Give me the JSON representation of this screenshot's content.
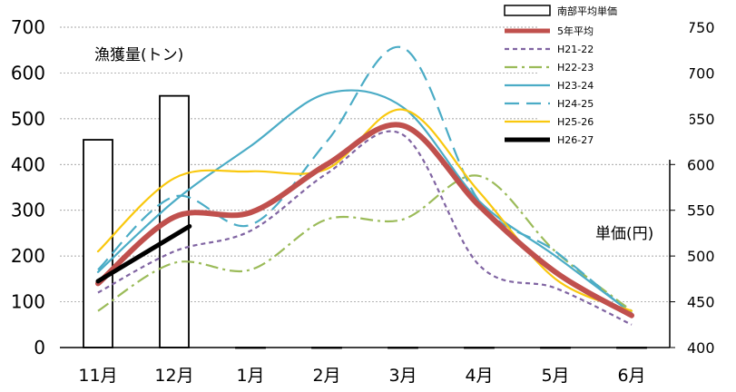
{
  "chart_data": {
    "type": "bar+line",
    "categories": [
      "11月",
      "12月",
      "1月",
      "2月",
      "3月",
      "4月",
      "5月",
      "6月"
    ],
    "y_left": {
      "label": "漁獲量(トン)",
      "range": [
        0,
        700
      ],
      "ticks": [
        "0",
        "100",
        "200",
        "300",
        "400",
        "500",
        "600",
        "700"
      ]
    },
    "y_right": {
      "label": "単価(円)",
      "range": [
        400,
        750
      ],
      "ticks": [
        "400",
        "450",
        "500",
        "550",
        "600",
        "650",
        "700",
        "750"
      ]
    },
    "bars": {
      "name": "南部平均単価",
      "axis": "right",
      "values": [
        627,
        675,
        400,
        400,
        400,
        400,
        400,
        400
      ]
    },
    "series": [
      {
        "name": "5年平均",
        "color": "#c0504d",
        "dash": "",
        "width": 6,
        "x": [
          0,
          1,
          2,
          3,
          4,
          5,
          6,
          7
        ],
        "values": [
          140,
          285,
          295,
          400,
          485,
          310,
          165,
          70
        ]
      },
      {
        "name": "H21-22",
        "color": "#8064a2",
        "dash": "5,4",
        "width": 2.2,
        "x": [
          0,
          1,
          2,
          3,
          4,
          5,
          6,
          7
        ],
        "values": [
          120,
          210,
          255,
          380,
          465,
          180,
          130,
          50
        ]
      },
      {
        "name": "H22-23",
        "color": "#9bbb59",
        "dash": "14,5,3,5",
        "width": 2.2,
        "x": [
          0,
          1,
          2,
          3,
          4,
          5,
          6,
          7
        ],
        "values": [
          80,
          185,
          170,
          280,
          280,
          375,
          210,
          80
        ]
      },
      {
        "name": "H23-24",
        "color": "#4bacc6",
        "dash": "",
        "width": 2.2,
        "x": [
          0,
          1,
          2,
          3,
          4,
          5,
          6,
          7
        ],
        "values": [
          165,
          320,
          440,
          555,
          525,
          320,
          200,
          75
        ]
      },
      {
        "name": "H24-25",
        "color": "#4bacc6",
        "dash": "16,8",
        "width": 2.2,
        "x": [
          0,
          1,
          2,
          3,
          4,
          5,
          6,
          7
        ],
        "values": [
          170,
          330,
          268,
          450,
          655,
          320,
          210,
          72
        ]
      },
      {
        "name": "H25-26",
        "color": "#f9c80e",
        "dash": "",
        "width": 2.2,
        "x": [
          0,
          1,
          2,
          3,
          4,
          5,
          6,
          7
        ],
        "values": [
          210,
          370,
          385,
          390,
          520,
          340,
          150,
          80
        ]
      },
      {
        "name": "H26-27",
        "color": "#000000",
        "dash": "",
        "width": 5,
        "x": [
          0,
          1.2
        ],
        "values": [
          145,
          265
        ]
      }
    ],
    "grid": true,
    "legend_position": "top-right"
  }
}
